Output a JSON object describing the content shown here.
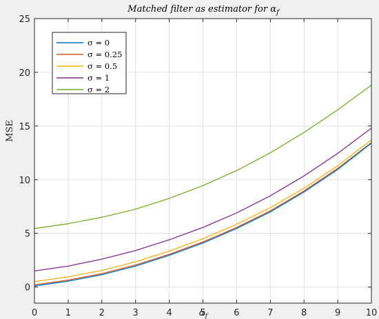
{
  "chart_data": {
    "type": "line",
    "title": "Matched filter as estimator for α_f",
    "xlabel": "α_f",
    "ylabel": "MSE",
    "xlim": [
      0,
      10
    ],
    "ylim": [
      -1.5,
      25
    ],
    "xticks": [
      0,
      1,
      2,
      3,
      4,
      5,
      6,
      7,
      8,
      9,
      10
    ],
    "yticks": [
      0,
      5,
      10,
      15,
      20,
      25
    ],
    "grid": true,
    "legend_position": "top-left",
    "x": [
      0,
      1,
      2,
      3,
      4,
      5,
      6,
      7,
      8,
      9,
      10
    ],
    "series": [
      {
        "name": "σ = 0",
        "color": "#0072bd",
        "values": [
          0.1,
          0.55,
          1.15,
          1.95,
          2.95,
          4.1,
          5.45,
          7.0,
          8.85,
          10.95,
          13.4
        ]
      },
      {
        "name": "σ = 0.25",
        "color": "#d95319",
        "values": [
          0.2,
          0.65,
          1.25,
          2.05,
          3.05,
          4.2,
          5.55,
          7.1,
          8.95,
          11.05,
          13.45
        ]
      },
      {
        "name": "σ = 0.5",
        "color": "#edb120",
        "values": [
          0.5,
          0.95,
          1.55,
          2.35,
          3.35,
          4.5,
          5.85,
          7.4,
          9.2,
          11.3,
          13.7
        ]
      },
      {
        "name": "σ = 1",
        "color": "#7e2f8e",
        "values": [
          1.5,
          1.95,
          2.6,
          3.4,
          4.4,
          5.55,
          6.9,
          8.5,
          10.35,
          12.45,
          14.8
        ]
      },
      {
        "name": "σ = 2",
        "color": "#77ac30",
        "values": [
          5.45,
          5.9,
          6.5,
          7.25,
          8.25,
          9.45,
          10.85,
          12.5,
          14.4,
          16.5,
          18.8
        ]
      }
    ]
  }
}
